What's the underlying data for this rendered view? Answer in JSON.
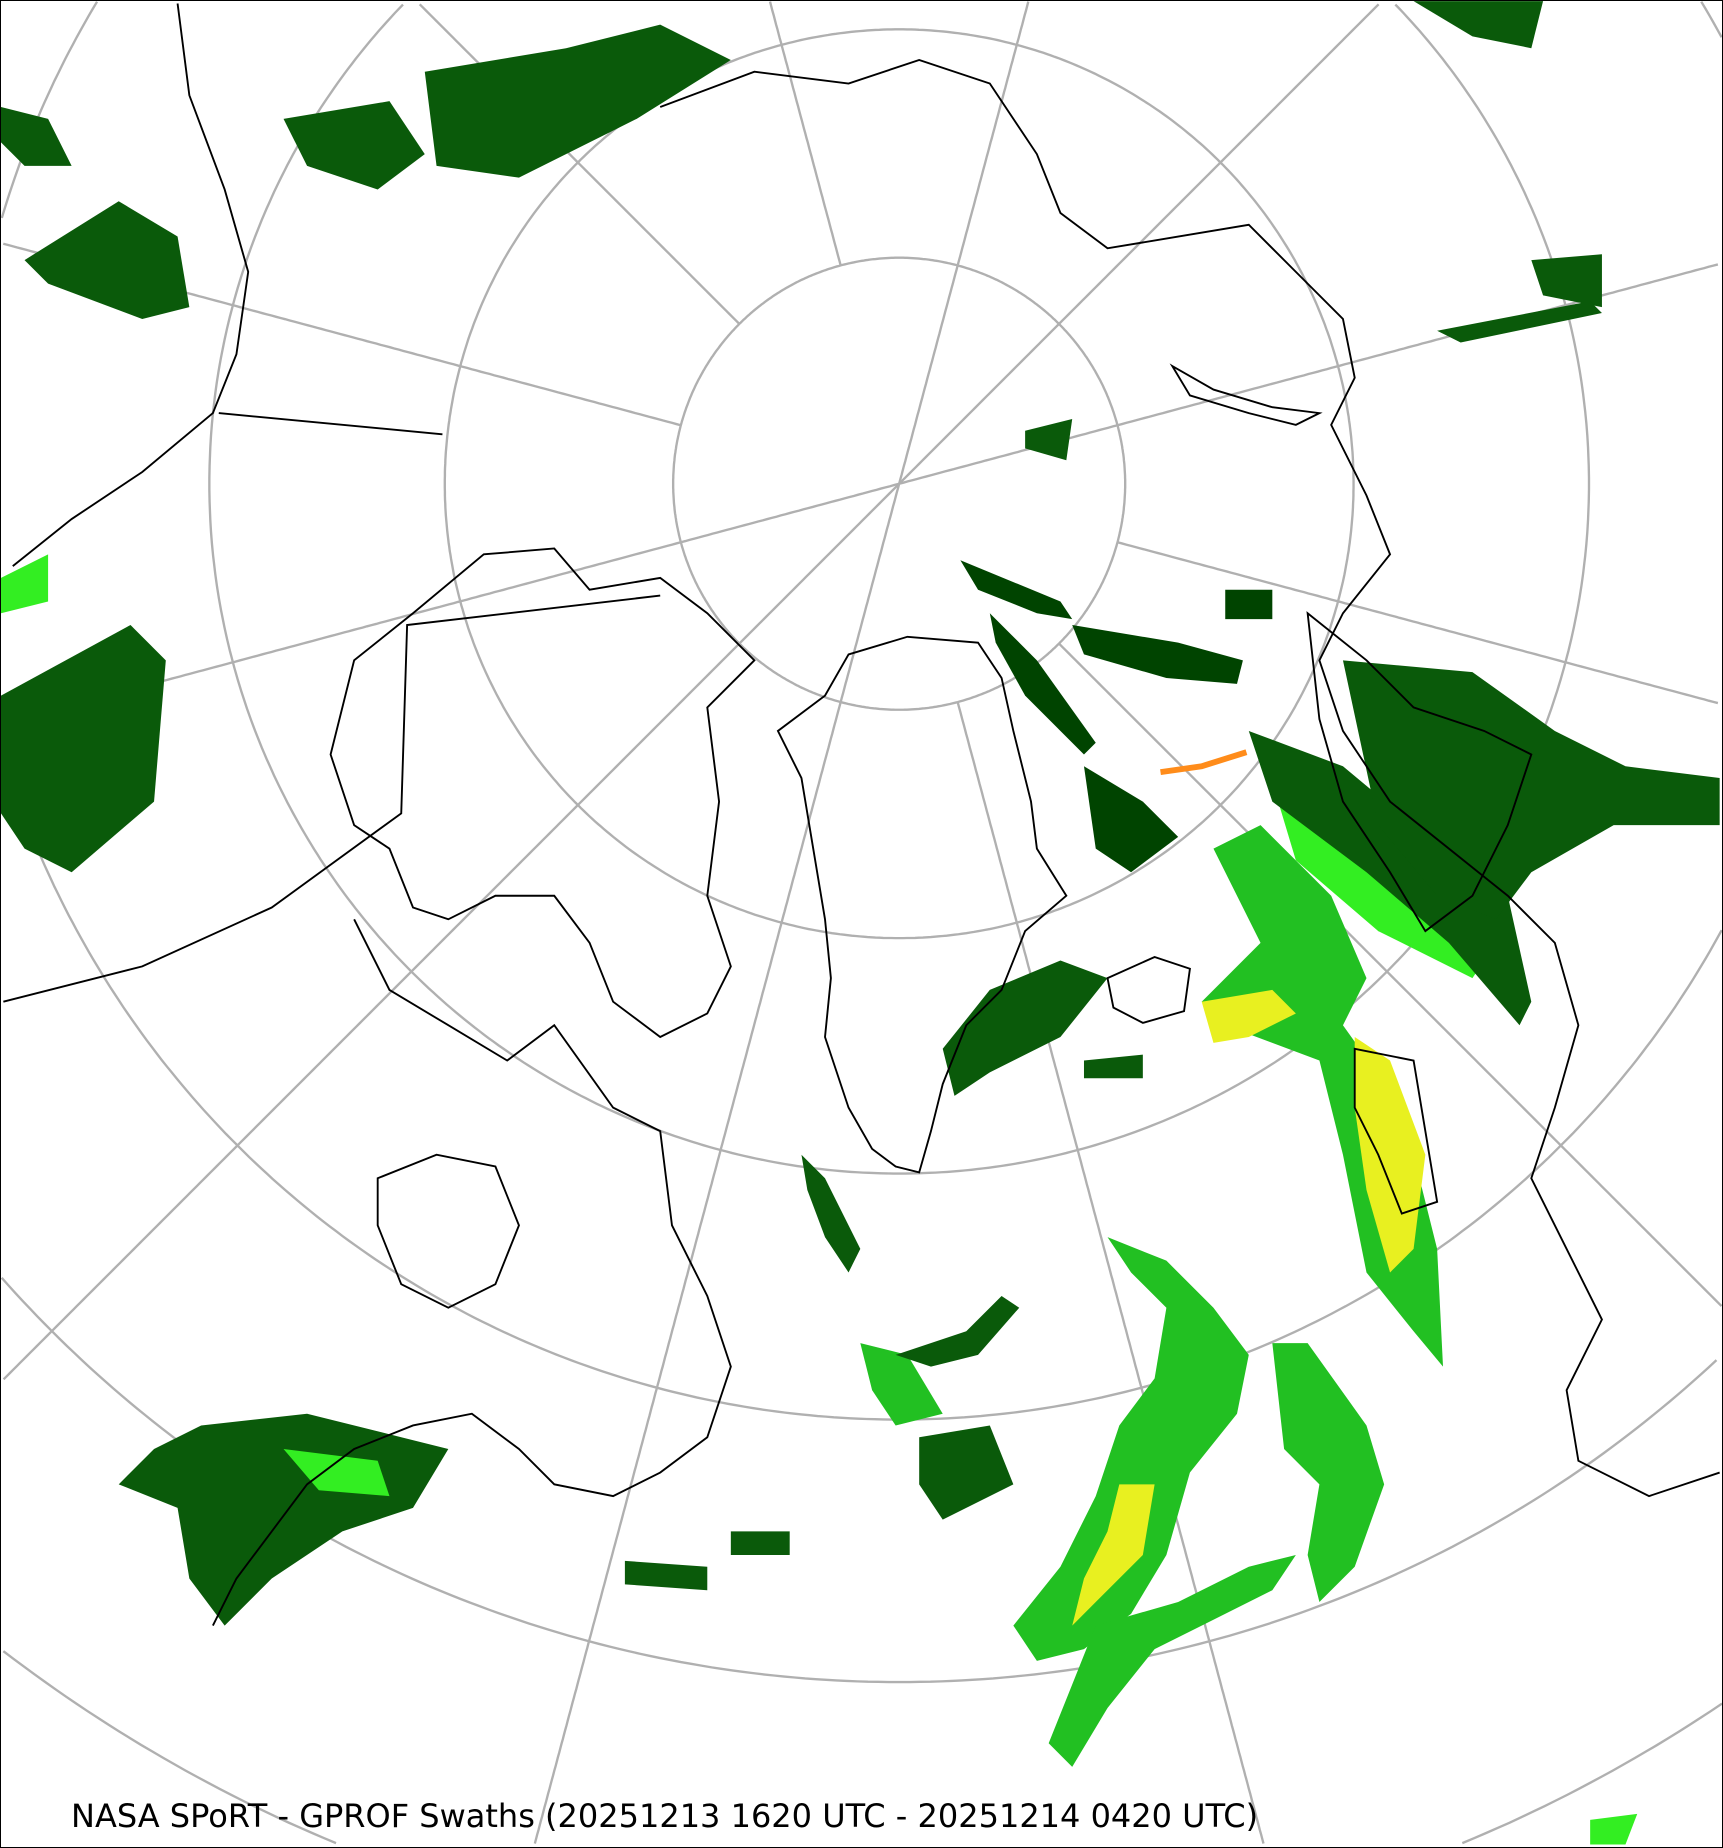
{
  "title": "NASA SPoRT - GPROF Swaths (20251213 1620 UTC - 20251214 0420 UTC)",
  "colors": {
    "graticule": "#b0b0b0",
    "coastline": "#000000",
    "precip_light": "#0a5a0a",
    "precip_dark": "#004400",
    "precip_moderate": "#22c022",
    "precip_bright": "#33ee22",
    "precip_heavy": "#e8f020",
    "precip_very_heavy": "#ff8c1a",
    "precip_extreme": "#ff2020"
  },
  "projection": "north-polar-stereographic"
}
